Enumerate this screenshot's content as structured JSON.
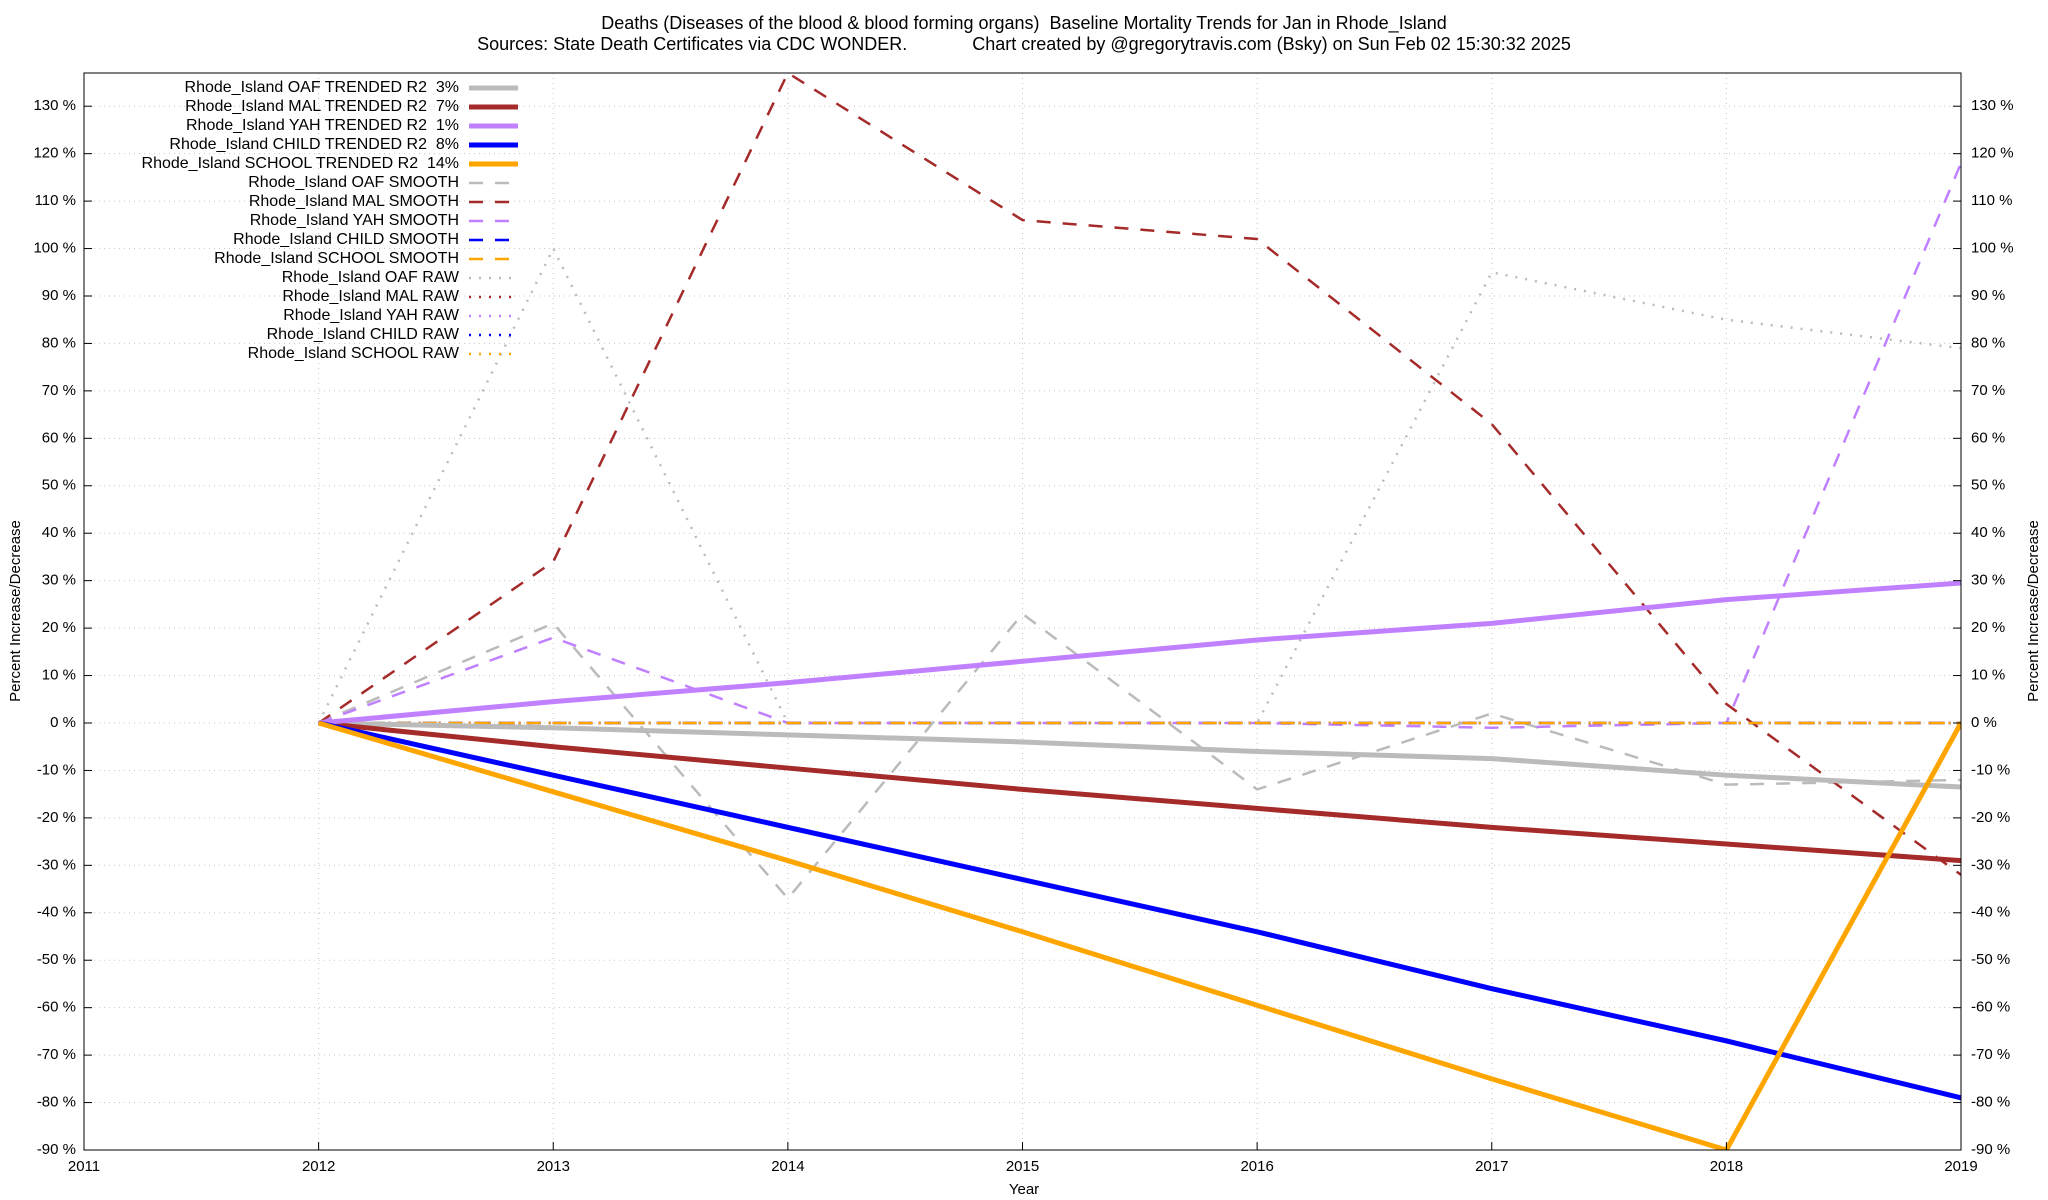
{
  "chart_data": {
    "type": "line",
    "title": "Deaths (Diseases of the blood & blood forming organs)  Baseline Mortality Trends for Jan in Rhode_Island",
    "subtitle": "Sources: State Death Certificates via CDC WONDER.             Chart created by @gregorytravis.com (Bsky) on Sun Feb 02 15:30:32 2025",
    "xlabel": "Year",
    "ylabel": "Percent Increase/Decrease",
    "y2label": "Percent Increase/Decrease",
    "grid": true,
    "legend": "top-left",
    "xlim": [
      2011,
      2019
    ],
    "xticks": [
      2011,
      2012,
      2013,
      2014,
      2015,
      2016,
      2017,
      2018,
      2019
    ],
    "ylim": [
      -90,
      137
    ],
    "yticks": [
      {
        "value": -90,
        "label": "-90 %"
      },
      {
        "value": -80,
        "label": "-80 %"
      },
      {
        "value": -70,
        "label": "-70 %"
      },
      {
        "value": -60,
        "label": "-60 %"
      },
      {
        "value": -50,
        "label": "-50 %"
      },
      {
        "value": -40,
        "label": "-40 %"
      },
      {
        "value": -30,
        "label": "-30 %"
      },
      {
        "value": -20,
        "label": "-20 %"
      },
      {
        "value": -10,
        "label": "-10 %"
      },
      {
        "value": 0,
        "label": "0 %"
      },
      {
        "value": 10,
        "label": "10 %"
      },
      {
        "value": 20,
        "label": "20 %"
      },
      {
        "value": 30,
        "label": "30 %"
      },
      {
        "value": 40,
        "label": "40 %"
      },
      {
        "value": 50,
        "label": "50 %"
      },
      {
        "value": 60,
        "label": "60 %"
      },
      {
        "value": 70,
        "label": "70 %"
      },
      {
        "value": 80,
        "label": "80 %"
      },
      {
        "value": 90,
        "label": "90 %"
      },
      {
        "value": 100,
        "label": "100 %"
      },
      {
        "value": 110,
        "label": "110 %"
      },
      {
        "value": 120,
        "label": "120 %"
      },
      {
        "value": 130,
        "label": "130 %"
      }
    ],
    "y2lim": [
      -90,
      137
    ],
    "y2ticks": [
      {
        "value": -90,
        "label": "-90 %"
      },
      {
        "value": -80,
        "label": "-80 %"
      },
      {
        "value": -70,
        "label": "-70 %"
      },
      {
        "value": -60,
        "label": "-60 %"
      },
      {
        "value": -50,
        "label": "-50 %"
      },
      {
        "value": -40,
        "label": "-40 %"
      },
      {
        "value": -30,
        "label": "-30 %"
      },
      {
        "value": -20,
        "label": "-20 %"
      },
      {
        "value": -10,
        "label": "-10 %"
      },
      {
        "value": 0,
        "label": "0 %"
      },
      {
        "value": 10,
        "label": "10 %"
      },
      {
        "value": 20,
        "label": "20 %"
      },
      {
        "value": 30,
        "label": "30 %"
      },
      {
        "value": 40,
        "label": "40 %"
      },
      {
        "value": 50,
        "label": "50 %"
      },
      {
        "value": 60,
        "label": "60 %"
      },
      {
        "value": 70,
        "label": "70 %"
      },
      {
        "value": 80,
        "label": "80 %"
      },
      {
        "value": 90,
        "label": "90 %"
      },
      {
        "value": 100,
        "label": "100 %"
      },
      {
        "value": 110,
        "label": "110 %"
      },
      {
        "value": 120,
        "label": "120 %"
      },
      {
        "value": 130,
        "label": "130 %"
      }
    ],
    "x": [
      2012,
      2013,
      2014,
      2015,
      2016,
      2017,
      2018,
      2019
    ],
    "series": [
      {
        "name": "Rhode_Island OAF TRENDED R2  3%",
        "color": "#bbbbbb",
        "style": "solid",
        "values": [
          0,
          -1,
          -2.5,
          -4,
          -6,
          -7.5,
          -11,
          -13.5
        ]
      },
      {
        "name": "Rhode_Island MAL TRENDED R2  7%",
        "color": "#a52a2a",
        "style": "solid",
        "values": [
          0,
          -5,
          -9.5,
          -14,
          -18,
          -22,
          -25.5,
          -29
        ]
      },
      {
        "name": "Rhode_Island YAH TRENDED R2  1%",
        "color": "#c080ff",
        "style": "solid",
        "values": [
          0,
          4.5,
          8.5,
          13,
          17.5,
          21,
          26,
          29.5
        ]
      },
      {
        "name": "Rhode_Island CHILD TRENDED R2  8%",
        "color": "#0000ff",
        "style": "solid",
        "values": [
          0,
          -11,
          -22,
          -33,
          -44,
          -56,
          -67,
          -79
        ]
      },
      {
        "name": "Rhode_Island SCHOOL TRENDED R2  14%",
        "color": "#ffa500",
        "style": "solid",
        "values": [
          0,
          -14.5,
          -29,
          -44,
          -59.5,
          -75,
          -90,
          0
        ]
      },
      {
        "name": "Rhode_Island OAF SMOOTH",
        "color": "#bbbbbb",
        "style": "dashed",
        "values": [
          0,
          21,
          -37,
          23,
          -14,
          2,
          -13,
          -12
        ]
      },
      {
        "name": "Rhode_Island MAL SMOOTH",
        "color": "#a52a2a",
        "style": "dashed",
        "values": [
          0,
          34,
          137,
          106,
          102,
          63,
          4,
          -32
        ]
      },
      {
        "name": "Rhode_Island YAH SMOOTH",
        "color": "#c080ff",
        "style": "dashed",
        "values": [
          0,
          18,
          0,
          0,
          0,
          -1,
          0,
          118
        ]
      },
      {
        "name": "Rhode_Island CHILD SMOOTH",
        "color": "#0000ff",
        "style": "dashed",
        "values": [
          0,
          0,
          0,
          0,
          0,
          0,
          0,
          0
        ]
      },
      {
        "name": "Rhode_Island SCHOOL SMOOTH",
        "color": "#ffa500",
        "style": "dashed",
        "values": [
          0,
          0,
          0,
          0,
          0,
          0,
          0,
          0
        ]
      },
      {
        "name": "Rhode_Island OAF RAW",
        "color": "#bbbbbb",
        "style": "dotted",
        "values": [
          0,
          100,
          0,
          0,
          0,
          95,
          85,
          79
        ]
      },
      {
        "name": "Rhode_Island MAL RAW",
        "color": "#a52a2a",
        "style": "dotted",
        "values": [
          0,
          0,
          0,
          0,
          0,
          0,
          0,
          0
        ]
      },
      {
        "name": "Rhode_Island YAH RAW",
        "color": "#c080ff",
        "style": "dotted",
        "values": [
          0,
          0,
          0,
          0,
          0,
          0,
          0,
          0
        ]
      },
      {
        "name": "Rhode_Island CHILD RAW",
        "color": "#0000ff",
        "style": "dotted",
        "values": [
          0,
          0,
          0,
          0,
          0,
          0,
          0,
          0
        ]
      },
      {
        "name": "Rhode_Island SCHOOL RAW",
        "color": "#ffa500",
        "style": "dotted",
        "values": [
          0,
          0,
          0,
          0,
          0,
          0,
          0,
          0
        ]
      }
    ]
  }
}
